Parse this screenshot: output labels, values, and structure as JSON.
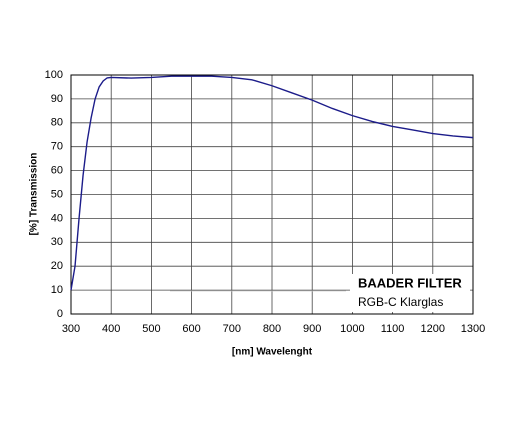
{
  "chart_data": {
    "type": "line",
    "xlabel": "[nm] Wavelenght",
    "ylabel": "[%] Transmission",
    "annotation_title": "BAADER FILTER",
    "annotation_subtitle": "RGB-C Klarglas",
    "x": [
      300,
      310,
      320,
      330,
      340,
      350,
      360,
      370,
      380,
      390,
      400,
      450,
      500,
      550,
      600,
      650,
      700,
      750,
      800,
      850,
      900,
      950,
      1000,
      1050,
      1100,
      1150,
      1200,
      1250,
      1300
    ],
    "series": [
      {
        "color": "#1c1c8a",
        "values": [
          10,
          20,
          40,
          58,
          72,
          82,
          90,
          95,
          97.5,
          98.8,
          99,
          98.7,
          99,
          99.5,
          99.5,
          99.5,
          99,
          98,
          95.5,
          92.5,
          89.5,
          86,
          83,
          80.5,
          78.5,
          77,
          75.5,
          74.5,
          73.8
        ]
      }
    ],
    "xlim": [
      300,
      1300
    ],
    "xticks": [
      300,
      400,
      500,
      600,
      700,
      800,
      900,
      1000,
      1100,
      1200,
      1300
    ],
    "ylim": [
      0,
      100
    ],
    "yticks": [
      0,
      10,
      20,
      30,
      40,
      50,
      60,
      70,
      80,
      90,
      100
    ],
    "grid": true
  }
}
